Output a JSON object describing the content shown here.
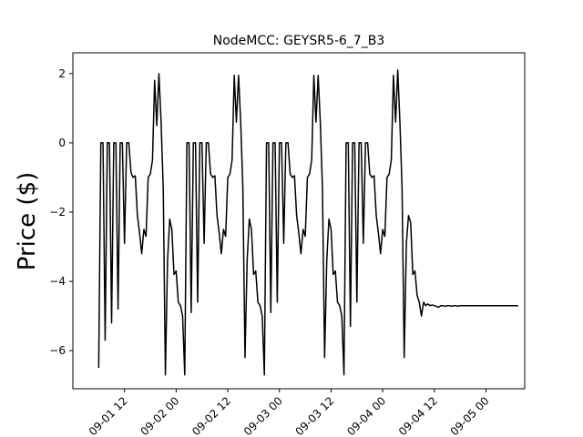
{
  "chart_data": {
    "type": "line",
    "title": "NodeMCC: GEYSR5-6_7_B3",
    "xlabel": "",
    "ylabel": "Price ($)",
    "x_axis_type": "datetime",
    "xlim": [
      "2023-09-01 00:00",
      "2023-09-05 09:00"
    ],
    "ylim": [
      -7.1,
      2.6
    ],
    "y_ticks": [
      2,
      0,
      -2,
      -4,
      -6
    ],
    "x_ticks": [
      "2023-09-01 12:00",
      "2023-09-02 00:00",
      "2023-09-02 12:00",
      "2023-09-03 00:00",
      "2023-09-03 12:00",
      "2023-09-04 00:00",
      "2023-09-04 12:00",
      "2023-09-05 00:00"
    ],
    "x_tick_labels": [
      "09-01 12",
      "09-02 00",
      "09-02 12",
      "09-03 00",
      "09-03 12",
      "09-04 00",
      "09-04 12",
      "09-05 00"
    ],
    "grid": false,
    "legend": "none",
    "line_color": "#000000",
    "series": [
      {
        "x": [
          "2023-09-01 06:00",
          "2023-09-01 06:30",
          "2023-09-01 07:00",
          "2023-09-01 07:30",
          "2023-09-01 08:00",
          "2023-09-01 08:30",
          "2023-09-01 09:00",
          "2023-09-01 09:30",
          "2023-09-01 10:00",
          "2023-09-01 10:30",
          "2023-09-01 11:00",
          "2023-09-01 11:30",
          "2023-09-01 12:00",
          "2023-09-01 12:30",
          "2023-09-01 13:00",
          "2023-09-01 13:30",
          "2023-09-01 14:00",
          "2023-09-01 14:30",
          "2023-09-01 15:00",
          "2023-09-01 15:30",
          "2023-09-01 16:00",
          "2023-09-01 16:30",
          "2023-09-01 17:00",
          "2023-09-01 17:30",
          "2023-09-01 18:00",
          "2023-09-01 18:30",
          "2023-09-01 19:00",
          "2023-09-01 19:30",
          "2023-09-01 20:00",
          "2023-09-01 20:30",
          "2023-09-01 21:00",
          "2023-09-01 21:30",
          "2023-09-01 22:00",
          "2023-09-01 22:30",
          "2023-09-01 23:00",
          "2023-09-01 23:30",
          "2023-09-02 00:00",
          "2023-09-02 00:30",
          "2023-09-02 01:00",
          "2023-09-02 01:30",
          "2023-09-02 02:00",
          "2023-09-02 02:30",
          "2023-09-02 03:00",
          "2023-09-02 03:30",
          "2023-09-02 04:00",
          "2023-09-02 04:30",
          "2023-09-02 05:00",
          "2023-09-02 05:30",
          "2023-09-02 06:00",
          "2023-09-02 06:30",
          "2023-09-02 07:00",
          "2023-09-02 07:30",
          "2023-09-02 08:00",
          "2023-09-02 08:30",
          "2023-09-02 09:00",
          "2023-09-02 09:30",
          "2023-09-02 10:00",
          "2023-09-02 10:30",
          "2023-09-02 11:00",
          "2023-09-02 11:30",
          "2023-09-02 12:00",
          "2023-09-02 12:30",
          "2023-09-02 13:00",
          "2023-09-02 13:30",
          "2023-09-02 14:00",
          "2023-09-02 14:30",
          "2023-09-02 15:00",
          "2023-09-02 15:30",
          "2023-09-02 16:00",
          "2023-09-02 16:30",
          "2023-09-02 17:00",
          "2023-09-02 17:30",
          "2023-09-02 18:00",
          "2023-09-02 18:30",
          "2023-09-02 19:00",
          "2023-09-02 19:30",
          "2023-09-02 20:00",
          "2023-09-02 20:30",
          "2023-09-02 21:00",
          "2023-09-02 21:30",
          "2023-09-02 22:00",
          "2023-09-02 22:30",
          "2023-09-02 23:00",
          "2023-09-02 23:30",
          "2023-09-03 00:00",
          "2023-09-03 00:30",
          "2023-09-03 01:00",
          "2023-09-03 01:30",
          "2023-09-03 02:00",
          "2023-09-03 02:30",
          "2023-09-03 03:00",
          "2023-09-03 03:30",
          "2023-09-03 04:00",
          "2023-09-03 04:30",
          "2023-09-03 05:00",
          "2023-09-03 05:30",
          "2023-09-03 06:00",
          "2023-09-03 06:30",
          "2023-09-03 07:00",
          "2023-09-03 07:30",
          "2023-09-03 08:00",
          "2023-09-03 08:30",
          "2023-09-03 09:00",
          "2023-09-03 09:30",
          "2023-09-03 10:00",
          "2023-09-03 10:30",
          "2023-09-03 11:00",
          "2023-09-03 11:30",
          "2023-09-03 12:00",
          "2023-09-03 12:30",
          "2023-09-03 13:00",
          "2023-09-03 13:30",
          "2023-09-03 14:00",
          "2023-09-03 14:30",
          "2023-09-03 15:00",
          "2023-09-03 15:30",
          "2023-09-03 16:00",
          "2023-09-03 16:30",
          "2023-09-03 17:00",
          "2023-09-03 17:30",
          "2023-09-03 18:00",
          "2023-09-03 18:30",
          "2023-09-03 19:00",
          "2023-09-03 19:30",
          "2023-09-03 20:00",
          "2023-09-03 20:30",
          "2023-09-03 21:00",
          "2023-09-03 21:30",
          "2023-09-03 22:00",
          "2023-09-03 22:30",
          "2023-09-03 23:00",
          "2023-09-03 23:30",
          "2023-09-04 00:00",
          "2023-09-04 00:30",
          "2023-09-04 01:00",
          "2023-09-04 01:30",
          "2023-09-04 02:00",
          "2023-09-04 02:30",
          "2023-09-04 03:00",
          "2023-09-04 03:30",
          "2023-09-04 04:00",
          "2023-09-04 04:30",
          "2023-09-04 05:00",
          "2023-09-04 05:30",
          "2023-09-04 06:00",
          "2023-09-04 06:30",
          "2023-09-04 07:00",
          "2023-09-04 07:30",
          "2023-09-04 08:00",
          "2023-09-04 08:30",
          "2023-09-04 09:00",
          "2023-09-04 09:30",
          "2023-09-04 10:00",
          "2023-09-04 10:30",
          "2023-09-04 11:00",
          "2023-09-04 11:30",
          "2023-09-04 12:00",
          "2023-09-04 12:30",
          "2023-09-04 13:00",
          "2023-09-04 13:30",
          "2023-09-04 14:00",
          "2023-09-04 14:30",
          "2023-09-04 15:00",
          "2023-09-04 15:30",
          "2023-09-04 16:00",
          "2023-09-04 16:30",
          "2023-09-04 17:00",
          "2023-09-04 17:30",
          "2023-09-04 18:00",
          "2023-09-04 18:30",
          "2023-09-04 19:00",
          "2023-09-04 19:30",
          "2023-09-04 20:00",
          "2023-09-04 20:30",
          "2023-09-04 21:00",
          "2023-09-04 21:30",
          "2023-09-04 22:00",
          "2023-09-04 22:30",
          "2023-09-04 23:00",
          "2023-09-04 23:30",
          "2023-09-05 00:00",
          "2023-09-05 00:30",
          "2023-09-05 01:00",
          "2023-09-05 01:30",
          "2023-09-05 02:00",
          "2023-09-05 02:30",
          "2023-09-05 03:00",
          "2023-09-05 03:30",
          "2023-09-05 04:00",
          "2023-09-05 04:30",
          "2023-09-05 05:00",
          "2023-09-05 05:30",
          "2023-09-05 06:00",
          "2023-09-05 06:30",
          "2023-09-05 07:00",
          "2023-09-05 07:30"
        ],
        "values": [
          -6.5,
          0,
          0,
          -5.7,
          0,
          0,
          -5.2,
          0,
          0,
          -4.8,
          0,
          0,
          -2.9,
          0,
          0,
          -0.85,
          -1.0,
          -0.95,
          -2.1,
          -2.6,
          -3.2,
          -2.5,
          -2.7,
          -1.0,
          -0.9,
          -0.5,
          1.8,
          0.5,
          2.0,
          0.6,
          -1.3,
          -6.7,
          -3.4,
          -2.2,
          -2.5,
          -3.8,
          -3.7,
          -4.6,
          -4.7,
          -5.0,
          -6.7,
          0,
          0,
          -4.9,
          0,
          0,
          -4.6,
          0,
          0,
          -2.9,
          0,
          0,
          -0.9,
          -1.0,
          -0.95,
          -2.1,
          -2.6,
          -3.2,
          -2.5,
          -2.7,
          -1.0,
          -0.9,
          -0.5,
          1.95,
          0.6,
          1.95,
          0.6,
          -1.3,
          -6.2,
          -3.4,
          -2.2,
          -2.5,
          -3.8,
          -3.7,
          -4.6,
          -4.7,
          -5.0,
          -6.7,
          0,
          0,
          -4.9,
          0,
          0,
          -4.6,
          0,
          0,
          -2.9,
          0,
          0,
          -0.9,
          -1.0,
          -0.95,
          -2.1,
          -2.6,
          -3.2,
          -2.5,
          -2.7,
          -1.0,
          -0.9,
          -0.5,
          1.95,
          0.6,
          1.95,
          0.6,
          -1.3,
          -6.2,
          -3.4,
          -2.2,
          -2.5,
          -3.8,
          -3.7,
          -4.6,
          -4.7,
          -5.0,
          -6.7,
          0,
          0,
          -5.3,
          0,
          0,
          -4.6,
          0,
          0,
          -2.9,
          0,
          0,
          -0.9,
          -1.0,
          -0.95,
          -2.1,
          -2.6,
          -3.2,
          -2.5,
          -2.7,
          -1.0,
          -0.9,
          -0.5,
          1.95,
          0.6,
          2.1,
          0.6,
          -1.3,
          -6.2,
          -2.9,
          -2.1,
          -2.3,
          -3.8,
          -3.7,
          -4.4,
          -4.6,
          -5.0,
          -4.6,
          -4.7,
          -4.65,
          -4.7,
          -4.68,
          -4.7,
          -4.72,
          -4.75,
          -4.7,
          -4.7,
          -4.72,
          -4.7,
          -4.7,
          -4.72,
          -4.7,
          -4.7,
          -4.72,
          -4.7,
          -4.7,
          -4.7,
          -4.7,
          -4.7,
          -4.7,
          -4.7,
          -4.7,
          -4.7,
          -4.7,
          -4.7,
          -4.7,
          -4.7,
          -4.7,
          -4.7,
          -4.7,
          -4.7,
          -4.7,
          -4.7,
          -4.7,
          -4.7,
          -4.7,
          -4.7,
          -4.7,
          -4.7,
          -4.7,
          -4.7,
          -4.7
        ]
      }
    ]
  }
}
